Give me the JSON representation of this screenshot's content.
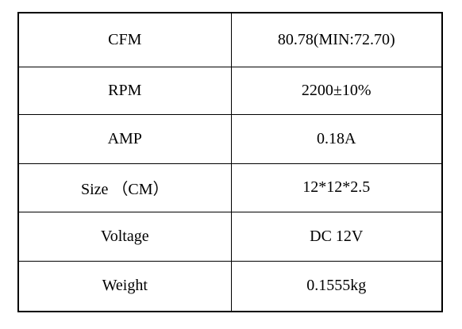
{
  "table": {
    "rows": [
      [
        "CFM",
        "80.78(MIN:72.70)"
      ],
      [
        "RPM",
        "2200±10%"
      ],
      [
        "AMP",
        "0.18A"
      ],
      [
        "Size （CM）",
        "12*12*2.5"
      ],
      [
        "Voltage",
        "DC 12V"
      ],
      [
        "Weight",
        "0.1555kg"
      ]
    ]
  }
}
